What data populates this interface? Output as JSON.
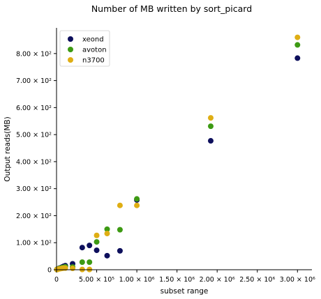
{
  "chart_data": {
    "type": "scatter",
    "title": "Number of MB written by sort_picard",
    "xlabel": "subset range",
    "ylabel": "Output reads(MB)",
    "xlim": [
      0,
      3180000
    ],
    "ylim": [
      0,
      895
    ],
    "x_ticks": [
      {
        "value": 0,
        "label": "0"
      },
      {
        "value": 500000,
        "label": "5.00 × 10⁵"
      },
      {
        "value": 1000000,
        "label": "1.00 × 10⁶"
      },
      {
        "value": 1500000,
        "label": "1.50 × 10⁶"
      },
      {
        "value": 2000000,
        "label": "2.00 × 10⁶"
      },
      {
        "value": 2500000,
        "label": "2.50 × 10⁶"
      },
      {
        "value": 3000000,
        "label": "3.00 × 10⁶"
      }
    ],
    "y_ticks": [
      {
        "value": 0,
        "label": "0"
      },
      {
        "value": 100,
        "label": "1.00 × 10²"
      },
      {
        "value": 200,
        "label": "2.00 × 10²"
      },
      {
        "value": 300,
        "label": "3.00 × 10²"
      },
      {
        "value": 400,
        "label": "4.00 × 10²"
      },
      {
        "value": 500,
        "label": "5.00 × 10²"
      },
      {
        "value": 600,
        "label": "6.00 × 10²"
      },
      {
        "value": 700,
        "label": "7.00 × 10²"
      },
      {
        "value": 800,
        "label": "8.00 × 10²"
      }
    ],
    "legend_position": "top-left",
    "grid": false,
    "series": [
      {
        "name": "xeond",
        "color": "#0d0f5c",
        "points": [
          [
            5000,
            1
          ],
          [
            10000,
            2
          ],
          [
            20000,
            3
          ],
          [
            30000,
            5
          ],
          [
            50000,
            7
          ],
          [
            70000,
            10
          ],
          [
            90000,
            13
          ],
          [
            110000,
            15
          ],
          [
            200000,
            22
          ],
          [
            320000,
            82
          ],
          [
            410000,
            90
          ],
          [
            500000,
            72
          ],
          [
            630000,
            52
          ],
          [
            790000,
            70
          ],
          [
            1000000,
            258
          ],
          [
            1920000,
            477
          ],
          [
            3000000,
            783
          ]
        ]
      },
      {
        "name": "avoton",
        "color": "#3d9a13",
        "points": [
          [
            5000,
            1
          ],
          [
            10000,
            2
          ],
          [
            20000,
            3
          ],
          [
            30000,
            4
          ],
          [
            50000,
            6
          ],
          [
            70000,
            8
          ],
          [
            90000,
            9
          ],
          [
            110000,
            11
          ],
          [
            200000,
            10
          ],
          [
            320000,
            28
          ],
          [
            410000,
            28
          ],
          [
            500000,
            103
          ],
          [
            630000,
            150
          ],
          [
            790000,
            148
          ],
          [
            1000000,
            262
          ],
          [
            1920000,
            531
          ],
          [
            3000000,
            832
          ]
        ]
      },
      {
        "name": "n3700",
        "color": "#dfae14",
        "points": [
          [
            5000,
            1
          ],
          [
            10000,
            1
          ],
          [
            20000,
            2
          ],
          [
            30000,
            3
          ],
          [
            50000,
            4
          ],
          [
            70000,
            5
          ],
          [
            90000,
            6
          ],
          [
            110000,
            6
          ],
          [
            200000,
            5
          ],
          [
            320000,
            1
          ],
          [
            410000,
            1
          ],
          [
            500000,
            127
          ],
          [
            630000,
            134
          ],
          [
            790000,
            238
          ],
          [
            1000000,
            238
          ],
          [
            1920000,
            562
          ],
          [
            3000000,
            860
          ]
        ]
      }
    ]
  }
}
